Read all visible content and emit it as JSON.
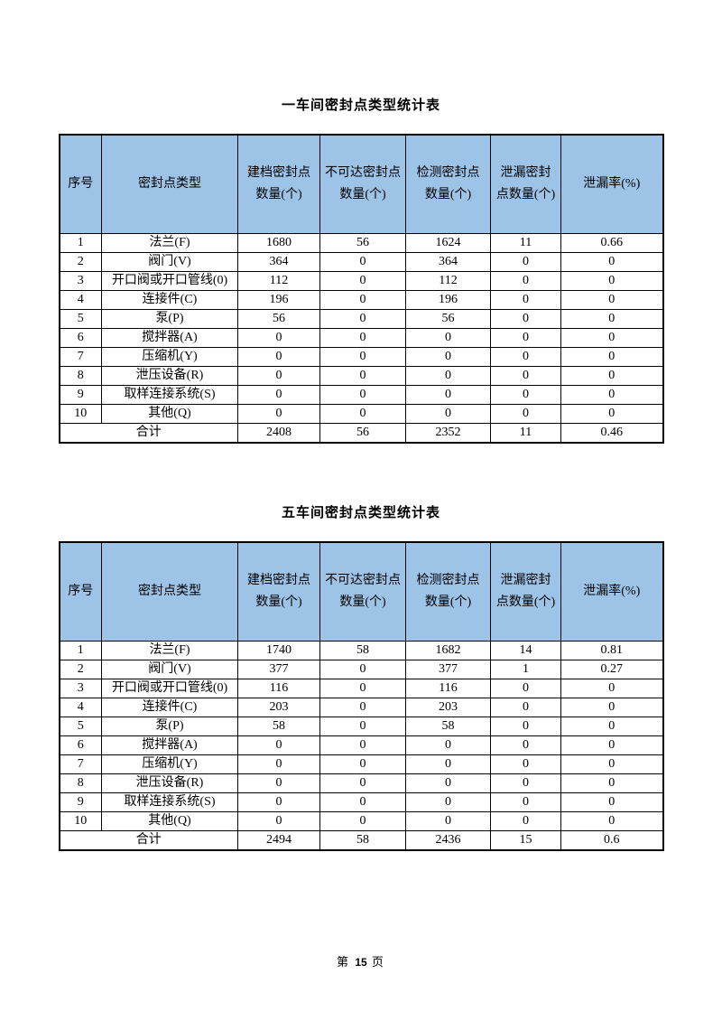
{
  "colors": {
    "header_fill": "#9DC3E6",
    "border": "#000000",
    "text": "#000000"
  },
  "page": {
    "footer": {
      "prefix": "第",
      "page_number": "15",
      "suffix": "页"
    }
  },
  "tables": [
    {
      "title": "一车间密封点类型统计表",
      "headers": [
        "序号",
        "密封点类型",
        "建档密封点数量(个)",
        "不可达密封点数量(个)",
        "检测密封点数量(个)",
        "泄漏密封点数量(个)",
        "泄漏率(%)"
      ],
      "rows": [
        [
          "1",
          "法兰(F)",
          "1680",
          "56",
          "1624",
          "11",
          "0.66"
        ],
        [
          "2",
          "阀门(V)",
          "364",
          "0",
          "364",
          "0",
          "0"
        ],
        [
          "3",
          "开口阀或开口管线(0)",
          "112",
          "0",
          "112",
          "0",
          "0"
        ],
        [
          "4",
          "连接件(C)",
          "196",
          "0",
          "196",
          "0",
          "0"
        ],
        [
          "5",
          "泵(P)",
          "56",
          "0",
          "56",
          "0",
          "0"
        ],
        [
          "6",
          "搅拌器(A)",
          "0",
          "0",
          "0",
          "0",
          "0"
        ],
        [
          "7",
          "压缩机(Y)",
          "0",
          "0",
          "0",
          "0",
          "0"
        ],
        [
          "8",
          "泄压设备(R)",
          "0",
          "0",
          "0",
          "0",
          "0"
        ],
        [
          "9",
          "取样连接系统(S)",
          "0",
          "0",
          "0",
          "0",
          "0"
        ],
        [
          "10",
          "其他(Q)",
          "0",
          "0",
          "0",
          "0",
          "0"
        ]
      ],
      "total": {
        "label": "合计",
        "values": [
          "2408",
          "56",
          "2352",
          "11",
          "0.46"
        ]
      }
    },
    {
      "title": "五车间密封点类型统计表",
      "headers": [
        "序号",
        "密封点类型",
        "建档密封点数量(个)",
        "不可达密封点数量(个)",
        "检测密封点数量(个)",
        "泄漏密封点数量(个)",
        "泄漏率(%)"
      ],
      "rows": [
        [
          "1",
          "法兰(F)",
          "1740",
          "58",
          "1682",
          "14",
          "0.81"
        ],
        [
          "2",
          "阀门(V)",
          "377",
          "0",
          "377",
          "1",
          "0.27"
        ],
        [
          "3",
          "开口阀或开口管线(0)",
          "116",
          "0",
          "116",
          "0",
          "0"
        ],
        [
          "4",
          "连接件(C)",
          "203",
          "0",
          "203",
          "0",
          "0"
        ],
        [
          "5",
          "泵(P)",
          "58",
          "0",
          "58",
          "0",
          "0"
        ],
        [
          "6",
          "搅拌器(A)",
          "0",
          "0",
          "0",
          "0",
          "0"
        ],
        [
          "7",
          "压缩机(Y)",
          "0",
          "0",
          "0",
          "0",
          "0"
        ],
        [
          "8",
          "泄压设备(R)",
          "0",
          "0",
          "0",
          "0",
          "0"
        ],
        [
          "9",
          "取样连接系统(S)",
          "0",
          "0",
          "0",
          "0",
          "0"
        ],
        [
          "10",
          "其他(Q)",
          "0",
          "0",
          "0",
          "0",
          "0"
        ]
      ],
      "total": {
        "label": "合计",
        "values": [
          "2494",
          "58",
          "2436",
          "15",
          "0.6"
        ]
      }
    }
  ]
}
